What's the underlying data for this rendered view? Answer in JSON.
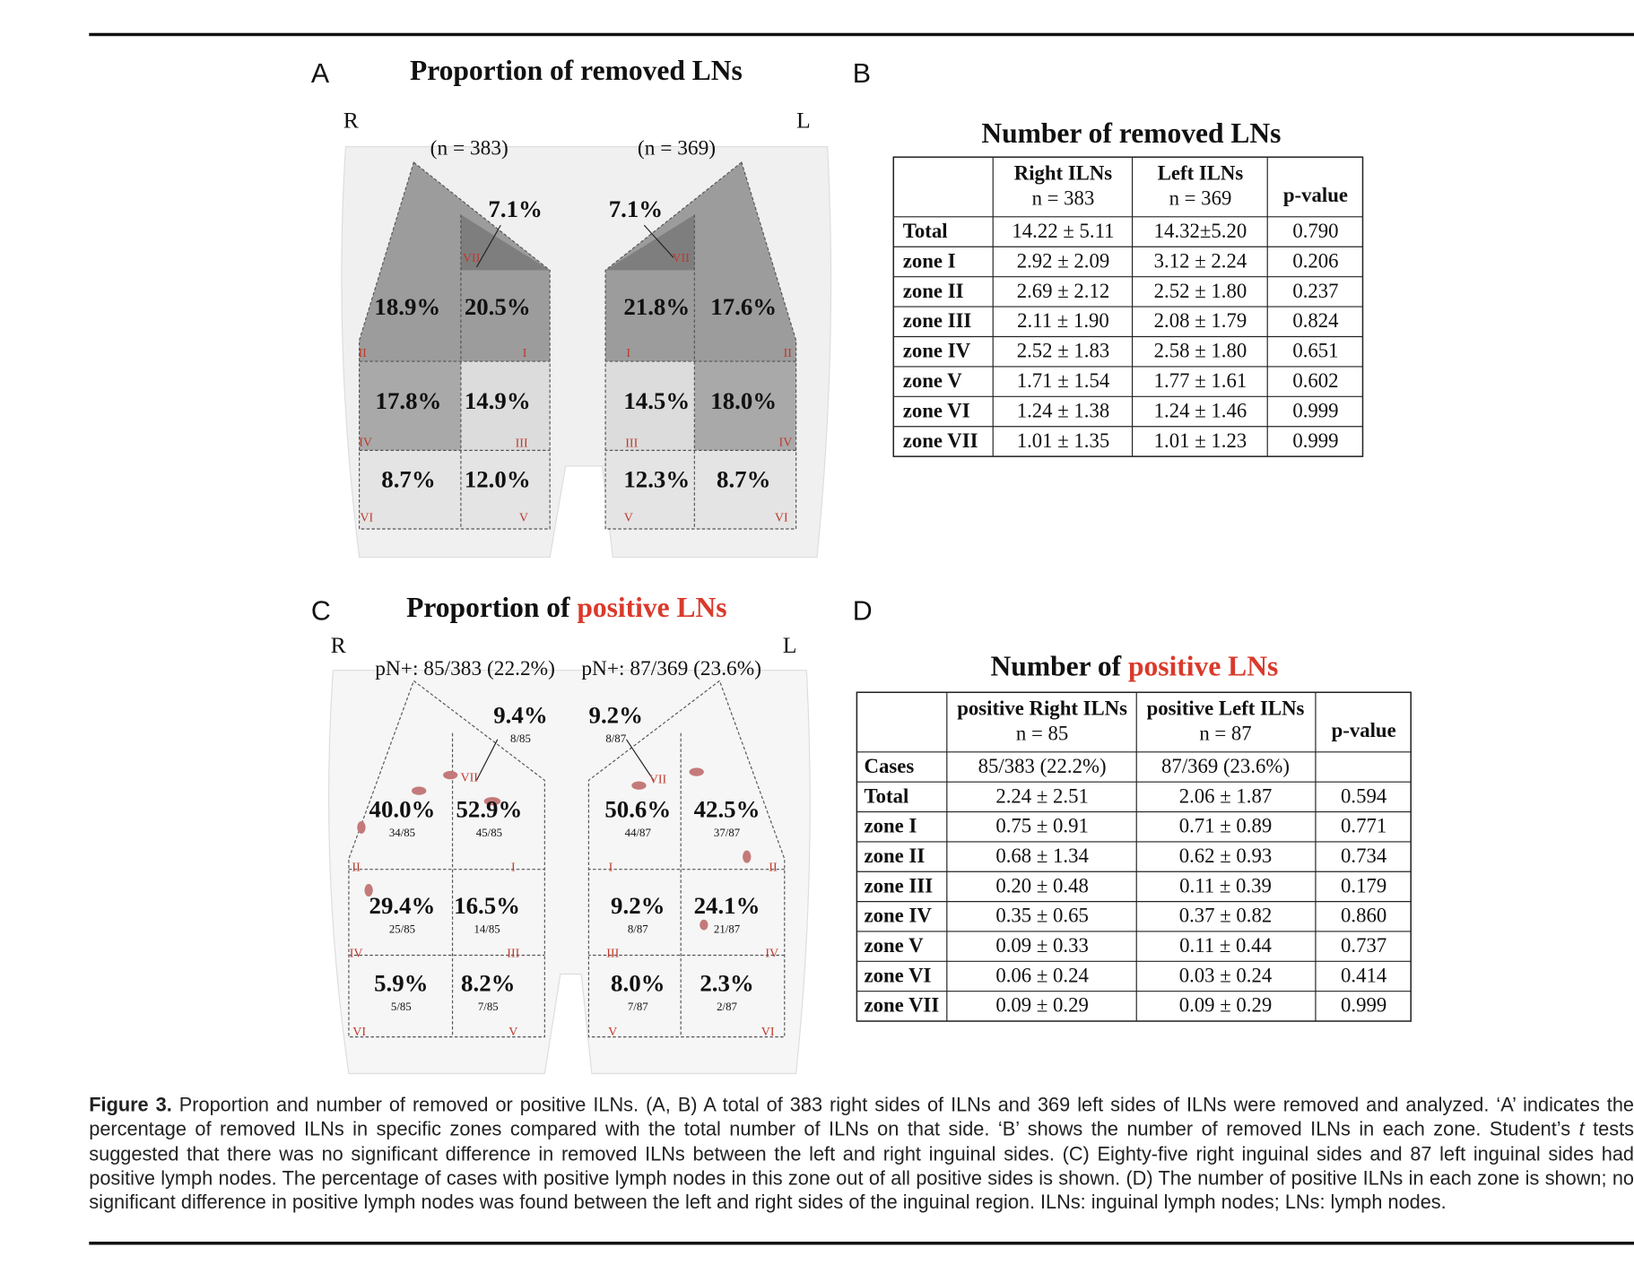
{
  "panel_a": {
    "label": "A",
    "title": "Proportion of removed LNs",
    "right_label": "R",
    "left_label": "L",
    "right_n": "(n = 383)",
    "left_n": "(n = 369)",
    "right_zones": [
      {
        "zone": "VII",
        "pct": "7.1%"
      },
      {
        "zone": "II",
        "pct": "18.9%"
      },
      {
        "zone": "I",
        "pct": "20.5%"
      },
      {
        "zone": "IV",
        "pct": "17.8%"
      },
      {
        "zone": "III",
        "pct": "14.9%"
      },
      {
        "zone": "VI",
        "pct": "8.7%"
      },
      {
        "zone": "V",
        "pct": "12.0%"
      }
    ],
    "left_zones": [
      {
        "zone": "VII",
        "pct": "7.1%"
      },
      {
        "zone": "I",
        "pct": "21.8%"
      },
      {
        "zone": "II",
        "pct": "17.6%"
      },
      {
        "zone": "III",
        "pct": "14.5%"
      },
      {
        "zone": "IV",
        "pct": "18.0%"
      },
      {
        "zone": "V",
        "pct": "12.3%"
      },
      {
        "zone": "VI",
        "pct": "8.7%"
      }
    ]
  },
  "panel_b": {
    "label": "B",
    "title": "Number of removed LNs",
    "columns": [
      {
        "name": "Right ILNs",
        "n": "n = 383"
      },
      {
        "name": "Left ILNs",
        "n": "n = 369"
      },
      {
        "name": "p-value"
      }
    ],
    "rows": [
      [
        "Total",
        "14.22 ± 5.11",
        "14.32±5.20",
        "0.790"
      ],
      [
        "zone I",
        "2.92 ± 2.09",
        "3.12 ± 2.24",
        "0.206"
      ],
      [
        "zone II",
        "2.69 ± 2.12",
        "2.52 ± 1.80",
        "0.237"
      ],
      [
        "zone III",
        "2.11 ± 1.90",
        "2.08 ± 1.79",
        "0.824"
      ],
      [
        "zone IV",
        "2.52 ± 1.83",
        "2.58 ± 1.80",
        "0.651"
      ],
      [
        "zone V",
        "1.71 ± 1.54",
        "1.77 ± 1.61",
        "0.602"
      ],
      [
        "zone VI",
        "1.24 ± 1.38",
        "1.24 ± 1.46",
        "0.999"
      ],
      [
        "zone VII",
        "1.01 ± 1.35",
        "1.01 ± 1.23",
        "0.999"
      ]
    ]
  },
  "panel_c": {
    "label": "C",
    "title_prefix": "Proportion of ",
    "title_highlight": "positive LNs",
    "right_label": "R",
    "left_label": "L",
    "right_n": "pN+: 85/383 (22.2%)",
    "left_n": "pN+: 87/369 (23.6%)",
    "right_zones": [
      {
        "zone": "VII",
        "pct": "9.4%",
        "fraction": "8/85"
      },
      {
        "zone": "II",
        "pct": "40.0%",
        "fraction": "34/85"
      },
      {
        "zone": "I",
        "pct": "52.9%",
        "fraction": "45/85"
      },
      {
        "zone": "IV",
        "pct": "29.4%",
        "fraction": "25/85"
      },
      {
        "zone": "III",
        "pct": "16.5%",
        "fraction": "14/85"
      },
      {
        "zone": "VI",
        "pct": "5.9%",
        "fraction": "5/85"
      },
      {
        "zone": "V",
        "pct": "8.2%",
        "fraction": "7/85"
      }
    ],
    "left_zones": [
      {
        "zone": "VII",
        "pct": "9.2%",
        "fraction": "8/87"
      },
      {
        "zone": "I",
        "pct": "50.6%",
        "fraction": "44/87"
      },
      {
        "zone": "II",
        "pct": "42.5%",
        "fraction": "37/87"
      },
      {
        "zone": "III",
        "pct": "9.2%",
        "fraction": "8/87"
      },
      {
        "zone": "IV",
        "pct": "24.1%",
        "fraction": "21/87"
      },
      {
        "zone": "V",
        "pct": "8.0%",
        "fraction": "7/87"
      },
      {
        "zone": "VI",
        "pct": "2.3%",
        "fraction": "2/87"
      }
    ]
  },
  "panel_d": {
    "label": "D",
    "title_prefix": "Number of ",
    "title_highlight": "positive LNs",
    "columns": [
      {
        "name": "positive Right ILNs",
        "n": "n = 85"
      },
      {
        "name": "positive Left ILNs",
        "n": "n = 87"
      },
      {
        "name": "p-value"
      }
    ],
    "rows": [
      [
        "Cases",
        "85/383 (22.2%)",
        "87/369 (23.6%)"
      ],
      [
        "Total",
        "2.24 ± 2.51",
        "2.06 ± 1.87",
        "0.594"
      ],
      [
        "zone I",
        "0.75 ± 0.91",
        "0.71 ± 0.89",
        "0.771"
      ],
      [
        "zone II",
        "0.68 ± 1.34",
        "0.62 ± 0.93",
        "0.734"
      ],
      [
        "zone III",
        "0.20 ± 0.48",
        "0.11 ± 0.39",
        "0.179"
      ],
      [
        "zone IV",
        "0.35 ± 0.65",
        "0.37 ± 0.82",
        "0.860"
      ],
      [
        "zone V",
        "0.09 ± 0.33",
        "0.11 ± 0.44",
        "0.737"
      ],
      [
        "zone VI",
        "0.06 ± 0.24",
        "0.03 ± 0.24",
        "0.414"
      ],
      [
        "zone VII",
        "0.09 ± 0.29",
        "0.09 ± 0.29",
        "0.999"
      ]
    ]
  },
  "caption": {
    "label": "Figure 3.",
    "text_1": "Proportion and number of removed or positive ILNs. (A, B) A total of 383 right sides of ILNs and 369 left sides of ILNs were removed and analyzed. ‘A’ indicates the percentage of removed ILNs in specific zones compared with the total number of ILNs on that side. ‘B’ shows the number of removed ILNs in each zone. Student’s",
    "italic": "t",
    "text_2": "tests suggested that there was no significant difference in removed ILNs between the left and right inguinal sides. (C) Eighty-five right inguinal sides and 87 left inguinal sides had positive lymph nodes. The percentage of cases with positive lymph nodes in this zone out of all positive sides is shown. (D) The number of positive ILNs in each zone is shown; no significant difference in positive lymph nodes was found between the left and right sides of the inguinal region. ILNs: inguinal lymph nodes; LNs: lymph nodes."
  }
}
